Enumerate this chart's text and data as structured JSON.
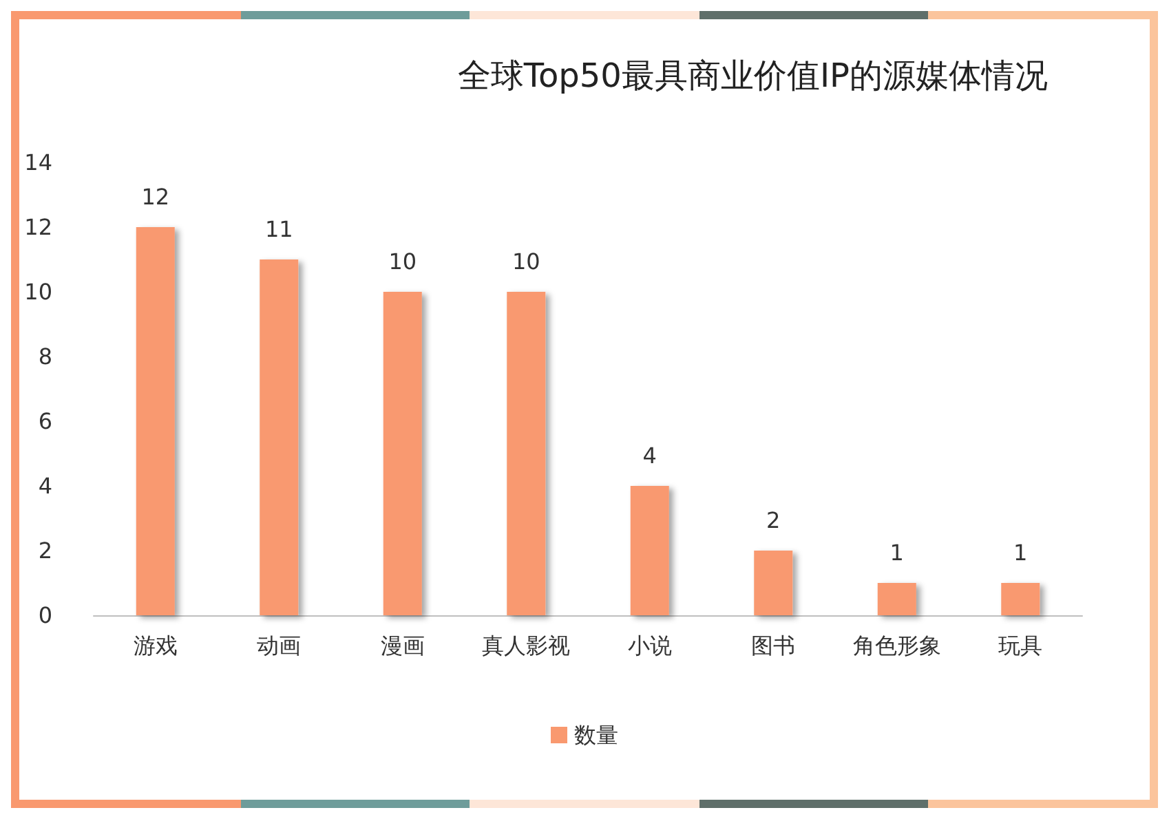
{
  "chart_data": {
    "type": "bar",
    "title": "全球Top50最具商业价值IP的源媒体情况",
    "categories": [
      "游戏",
      "动画",
      "漫画",
      "真人影视",
      "小说",
      "图书",
      "角色形象",
      "玩具"
    ],
    "series": [
      {
        "name": "数量",
        "color": "#f9996f",
        "values": [
          12,
          11,
          10,
          10,
          4,
          2,
          1,
          1
        ]
      }
    ],
    "ylim": [
      0,
      14
    ],
    "yticks": [
      0,
      2,
      4,
      6,
      8,
      10,
      12,
      14
    ],
    "grid": false,
    "legend": "bottom",
    "data_labels": true
  }
}
